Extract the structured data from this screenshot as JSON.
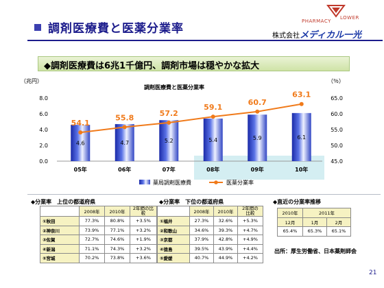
{
  "header": {
    "title": "調剤医療費と医薬分業率",
    "company_prefix": "株式会社",
    "company_name": "メディカル一光",
    "logo_left": "PHARMACY",
    "logo_right": "LOWER",
    "logo_colors": {
      "red": "#c0392b",
      "blue": "#1c3aa8",
      "navy": "#1c1c8c"
    }
  },
  "banner": {
    "text": "◆調剤医療費は6兆1千億円、調剤市場は穏やかな拡大"
  },
  "chart_data": {
    "type": "bar",
    "title": "調剤医療費と医薬分業率",
    "categories": [
      "05年",
      "06年",
      "07年",
      "08年",
      "09年",
      "10年"
    ],
    "highlight_categories": [
      "08年",
      "09年",
      "10年"
    ],
    "left_axis": {
      "unit_label": "（兆円）",
      "ylim": [
        0.0,
        8.0
      ],
      "ticks": [
        "0.0",
        "2.0",
        "4.0",
        "6.0",
        "8.0"
      ]
    },
    "right_axis": {
      "unit_label": "（％）",
      "ylim": [
        45.0,
        65.0
      ],
      "ticks": [
        "45.0",
        "50.0",
        "55.0",
        "60.0",
        "65.0"
      ]
    },
    "series": [
      {
        "name": "薬局調剤医療費",
        "kind": "bar",
        "axis": "left",
        "values": [
          4.6,
          4.7,
          5.2,
          5.4,
          5.9,
          6.1
        ],
        "labels": [
          "4.6",
          "4.7",
          "5.2",
          "5.4",
          "5.9",
          "6.1"
        ],
        "color": "#2f45c8"
      },
      {
        "name": "医薬分業率",
        "kind": "line",
        "axis": "right",
        "values": [
          54.1,
          55.8,
          57.2,
          59.1,
          60.7,
          63.1
        ],
        "labels": [
          "54.1",
          "55.8",
          "57.2",
          "59.1",
          "60.7",
          "63.1"
        ],
        "color": "#f07a1a"
      }
    ],
    "legend": "bottom",
    "grid": false
  },
  "tables": {
    "top": {
      "title": "◆分業率　上位の都道府県",
      "headers": [
        "",
        "2008年",
        "2010年",
        "2年間の比較"
      ],
      "rows": [
        [
          "①秋田",
          "77.3%",
          "80.8%",
          "+3.5%"
        ],
        [
          "②神奈川",
          "73.9%",
          "77.1%",
          "+3.2%"
        ],
        [
          "③佐賀",
          "72.7%",
          "74.6%",
          "+1.9%"
        ],
        [
          "④新潟",
          "71.1%",
          "74.3%",
          "+3.2%"
        ],
        [
          "⑤宮城",
          "70.2%",
          "73.8%",
          "+3.6%"
        ]
      ]
    },
    "bottom": {
      "title": "◆分業率　下位の都道府県",
      "headers": [
        "",
        "2008年",
        "2010年",
        "2年間の比較"
      ],
      "rows": [
        [
          "①福井",
          "27.3%",
          "32.6%",
          "+5.3%"
        ],
        [
          "②和歌山",
          "34.6%",
          "39.3%",
          "+4.7%"
        ],
        [
          "③京都",
          "37.9%",
          "42.8%",
          "+4.9%"
        ],
        [
          "④徳島",
          "39.5%",
          "43.9%",
          "+4.4%"
        ],
        [
          "⑤愛媛",
          "40.7%",
          "44.9%",
          "+4.2%"
        ]
      ]
    },
    "recent": {
      "title": "◆直近の分業率推移",
      "year_headers": [
        "2010年",
        "2011年"
      ],
      "month_headers": [
        "12月",
        "1月",
        "2月"
      ],
      "values": [
        "65.4%",
        "65.3%",
        "65.1%"
      ]
    }
  },
  "source": "出所：厚生労働省、日本薬剤師会",
  "page_number": "21"
}
